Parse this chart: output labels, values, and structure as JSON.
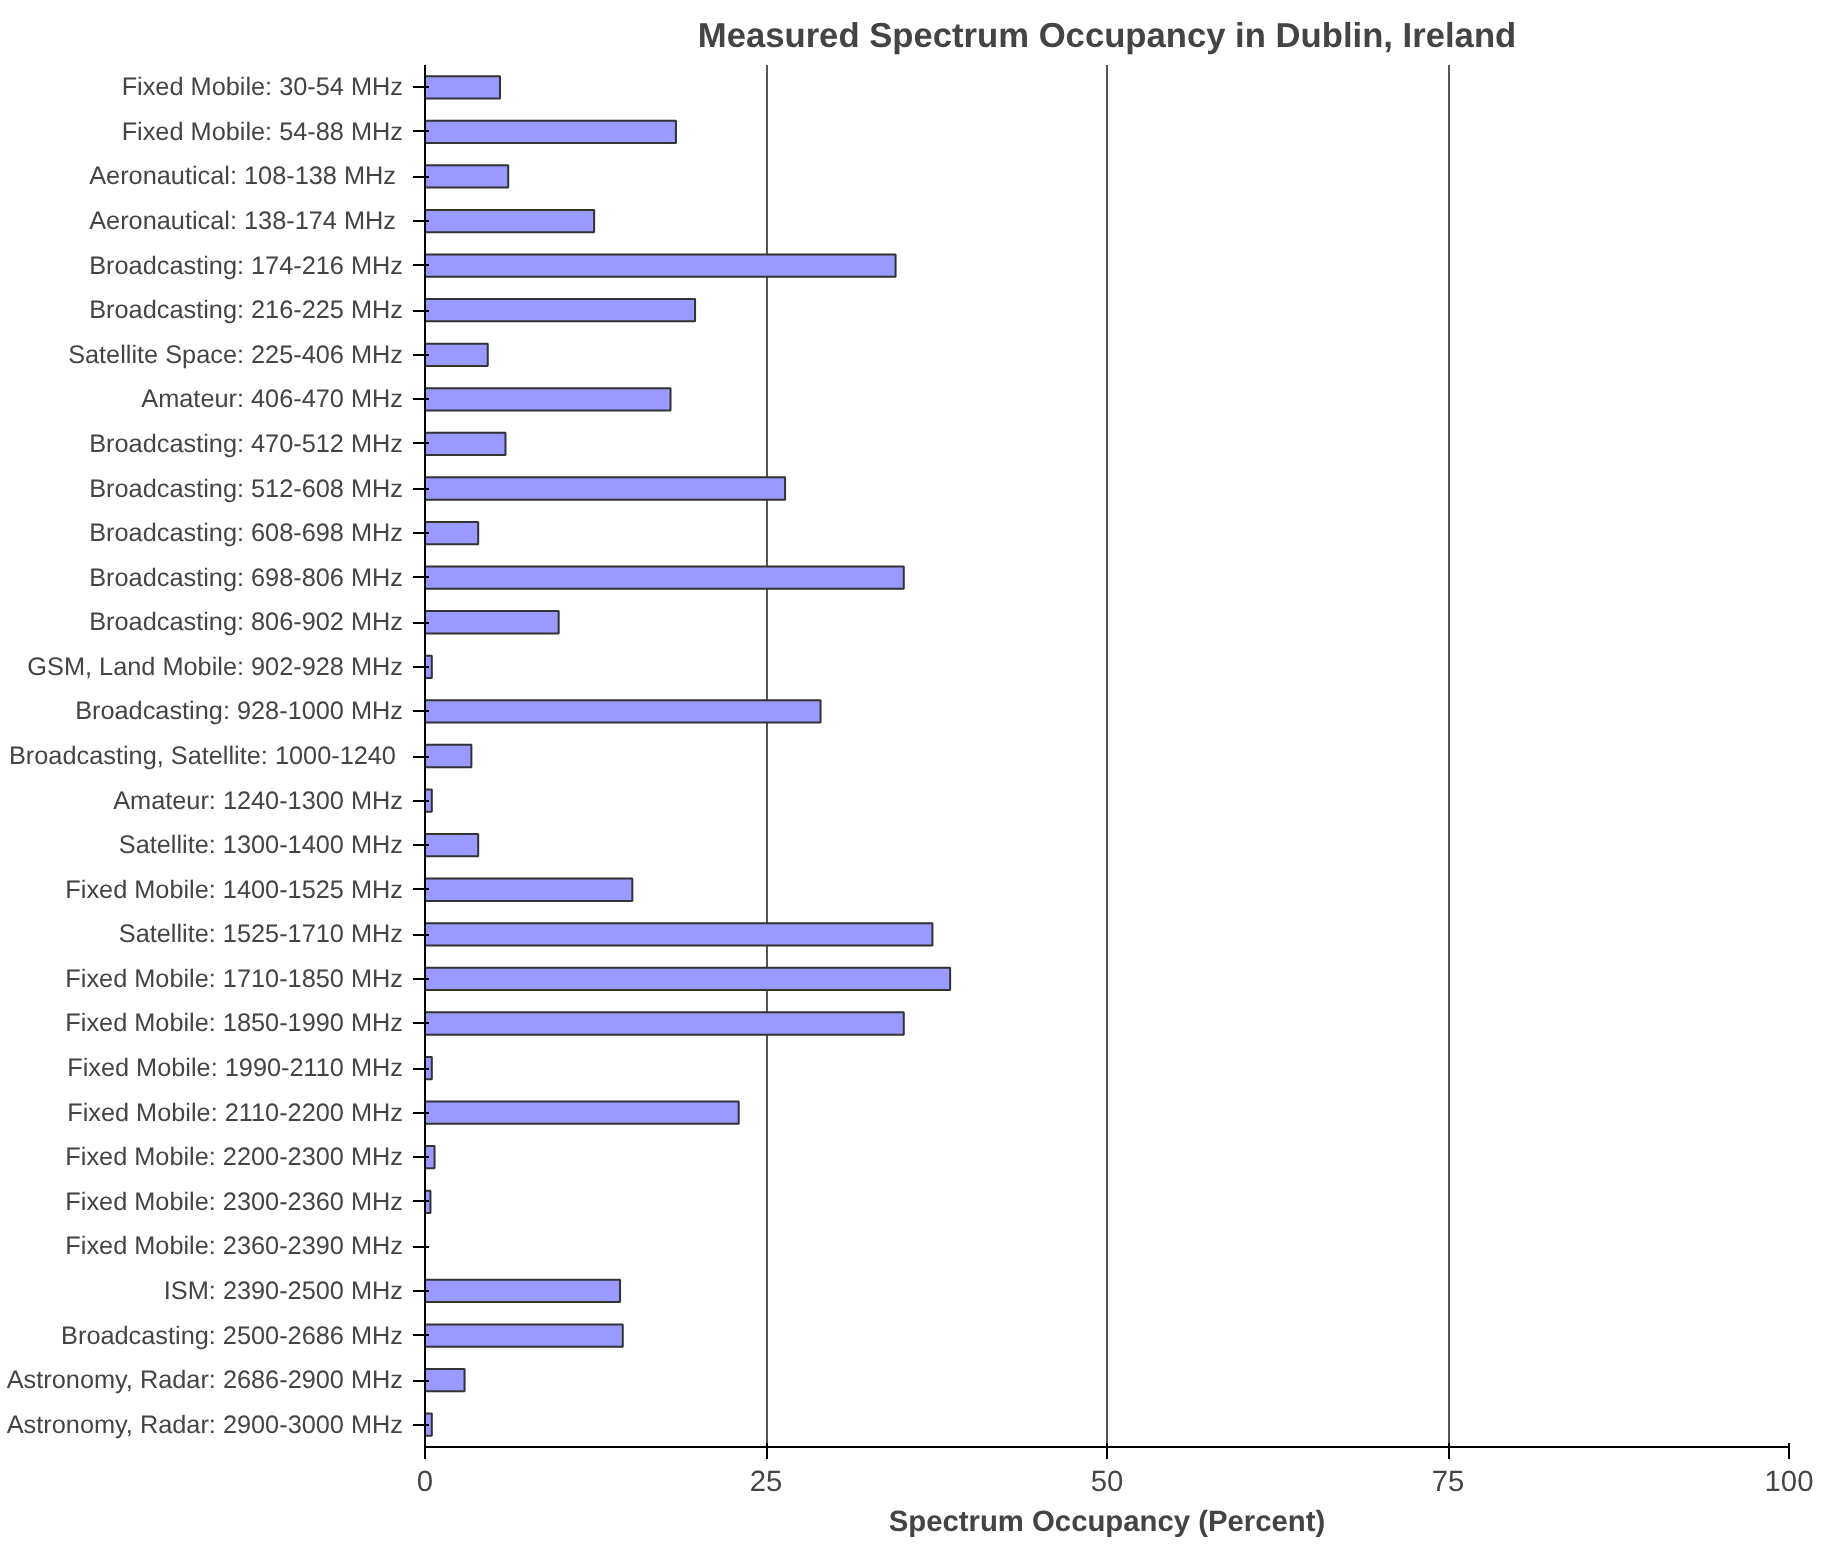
{
  "chart_data": {
    "type": "bar",
    "orientation": "horizontal",
    "title": "Measured Spectrum Occupancy in Dublin, Ireland",
    "xlabel": "Spectrum Occupancy (Percent)",
    "categories": [
      "Fixed Mobile: 30-54 MHz",
      "Fixed Mobile: 54-88 MHz",
      "Aeronautical: 108-138 MHz ",
      "Aeronautical: 138-174 MHz ",
      "Broadcasting: 174-216 MHz",
      "Broadcasting: 216-225 MHz",
      "Satellite Space: 225-406 MHz",
      "Amateur: 406-470 MHz",
      "Broadcasting: 470-512 MHz",
      "Broadcasting: 512-608 MHz",
      "Broadcasting: 608-698 MHz",
      "Broadcasting: 698-806 MHz",
      "Broadcasting: 806-902 MHz",
      "GSM, Land Mobile: 902-928 MHz",
      "Broadcasting: 928-1000 MHz",
      "Broadcasting, Satellite: 1000-1240 ",
      "Amateur: 1240-1300 MHz",
      "Satellite: 1300-1400 MHz",
      "Fixed Mobile: 1400-1525 MHz",
      "Satellite: 1525-1710 MHz",
      "Fixed Mobile: 1710-1850 MHz",
      "Fixed Mobile: 1850-1990 MHz",
      "Fixed Mobile: 1990-2110 MHz",
      "Fixed Mobile: 2110-2200 MHz",
      "Fixed Mobile: 2200-2300 MHz",
      "Fixed Mobile: 2300-2360 MHz",
      "Fixed Mobile: 2360-2390 MHz",
      "ISM: 2390-2500 MHz",
      "Broadcasting: 2500-2686 MHz",
      "Astronomy, Radar: 2686-2900 MHz",
      "Astronomy, Radar: 2900-3000 MHz"
    ],
    "values": [
      5.5,
      18.4,
      6.1,
      12.4,
      34.5,
      19.8,
      4.6,
      18.0,
      5.9,
      26.4,
      3.9,
      35.1,
      9.8,
      0.5,
      29.0,
      3.4,
      0.5,
      3.9,
      15.2,
      37.2,
      38.5,
      35.1,
      0.5,
      23.0,
      0.7,
      0.4,
      0,
      14.3,
      14.5,
      2.9,
      0.5
    ],
    "color": "#9999ff",
    "xlim": [
      0,
      100
    ],
    "xticks": [
      0,
      25,
      50,
      75,
      100
    ],
    "grid": "x"
  }
}
